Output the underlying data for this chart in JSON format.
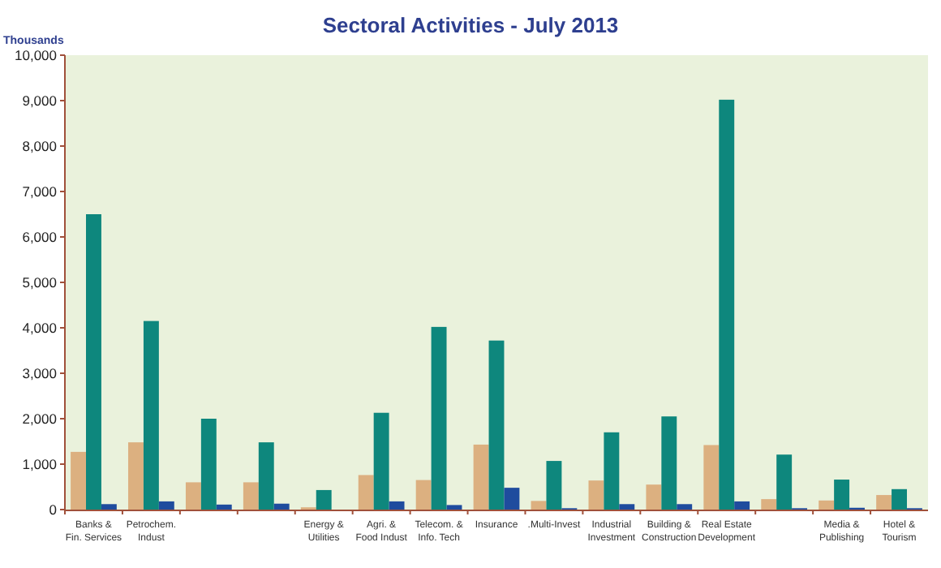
{
  "chart_data": {
    "type": "bar",
    "title": "Sectoral Activities - July 2013",
    "ylabel": "Thousands",
    "categories": [
      "Banks & Fin. Services",
      "Petrochem. Indust",
      null,
      null,
      "Energy & Utilities",
      "Agri. & Food Indust",
      "Telecom. & Info. Tech",
      "Insurance",
      ".Multi-Invest",
      "Industrial Investment",
      "Building & Construction",
      "Real Estate Development",
      null,
      "Media & Publishing",
      "Hotel & Tourism"
    ],
    "series": [
      {
        "color": "#dcb080",
        "values": [
          1270,
          1480,
          600,
          600,
          50,
          760,
          650,
          1430,
          190,
          640,
          550,
          1420,
          230,
          200,
          320
        ]
      },
      {
        "color": "#0e877d",
        "values": [
          6500,
          4150,
          2000,
          1480,
          430,
          2130,
          4020,
          3720,
          1070,
          1700,
          2050,
          9020,
          1210,
          660,
          450
        ]
      },
      {
        "color": "#1f4c9e",
        "values": [
          120,
          180,
          110,
          130,
          null,
          180,
          100,
          480,
          30,
          120,
          120,
          180,
          30,
          40,
          30
        ]
      }
    ],
    "ylim": [
      0,
      10000
    ],
    "yticks": [
      {
        "value": 0,
        "label": "0"
      },
      {
        "value": 1000,
        "label": "1,000"
      },
      {
        "value": 2000,
        "label": "2,000"
      },
      {
        "value": 3000,
        "label": "3,000"
      },
      {
        "value": 4000,
        "label": "4,000"
      },
      {
        "value": 5000,
        "label": "5,000"
      },
      {
        "value": 6000,
        "label": "6,000"
      },
      {
        "value": 7000,
        "label": "7,000"
      },
      {
        "value": 8000,
        "label": "8,000"
      },
      {
        "value": 9000,
        "label": "9,000"
      },
      {
        "value": 10000,
        "label": "10,000"
      }
    ],
    "grid": false
  }
}
